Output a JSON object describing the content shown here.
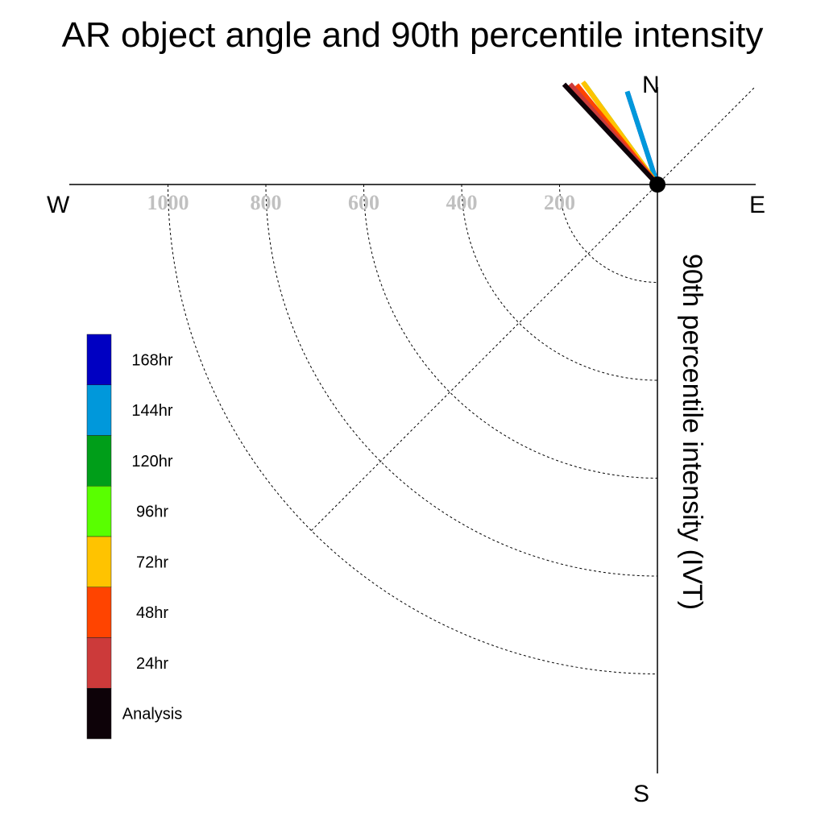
{
  "chart_data": {
    "type": "polar-vector",
    "title": "AR object angle and 90th percentile intensity",
    "ylabel": "90th percentile intensity (IVT)",
    "compass": {
      "north": "N",
      "south": "S",
      "east": "E",
      "west": "W"
    },
    "radial_ticks": [
      "1000",
      "800",
      "600",
      "400",
      "200"
    ],
    "radial_range": [
      0,
      1000
    ],
    "grid": true,
    "legend_position": "left",
    "series": [
      {
        "name": "Analysis",
        "color": "#0d0208",
        "angle_deg": 317,
        "magnitude": 280
      },
      {
        "name": "24hr",
        "color": "#cc3a3a",
        "angle_deg": 319,
        "magnitude": 272
      },
      {
        "name": "48hr",
        "color": "#ff4400",
        "angle_deg": 321,
        "magnitude": 262
      },
      {
        "name": "72hr",
        "color": "#ffc300",
        "angle_deg": 324,
        "magnitude": 259
      },
      {
        "name": "96hr",
        "color": "#59ff00",
        "angle_deg": 324,
        "magnitude": 255
      },
      {
        "name": "120hr",
        "color": "#009e19",
        "angle_deg": 324,
        "magnitude": 255
      },
      {
        "name": "144hr",
        "color": "#0098db",
        "angle_deg": 342,
        "magnitude": 200
      },
      {
        "name": "168hr",
        "color": "#0000c2",
        "angle_deg": 342,
        "magnitude": 198
      }
    ]
  }
}
